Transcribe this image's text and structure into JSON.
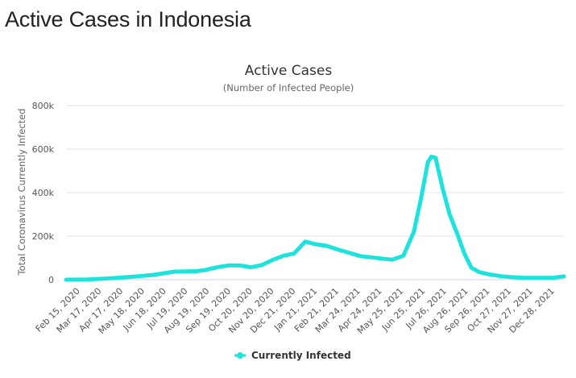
{
  "page": {
    "heading": "Active Cases in Indonesia"
  },
  "colors": {
    "series": "#1ee3dd",
    "grid": "#e6e6e6",
    "text": "#333333"
  },
  "chart_data": {
    "type": "line",
    "title": "Active Cases",
    "subtitle": "(Number of Infected People)",
    "ylabel": "Total Coronavirus Currently Infected",
    "xlabel": "",
    "ylim": [
      0,
      800000
    ],
    "y_ticks": [
      0,
      200000,
      400000,
      600000,
      800000
    ],
    "y_tick_labels": [
      "0",
      "200k",
      "400k",
      "600k",
      "800k"
    ],
    "x_tick_labels": [
      "Feb 15, 2020",
      "Mar 17, 2020",
      "Apr 17, 2020",
      "May 18, 2020",
      "Jun 18, 2020",
      "Jul 19, 2020",
      "Aug 19, 2020",
      "Sep 19, 2020",
      "Oct 20, 2020",
      "Nov 20, 2020",
      "Dec 21, 2020",
      "Jan 21, 2021",
      "Feb 21, 2021",
      "Mar 24, 2021",
      "Apr 24, 2021",
      "May 25, 2021",
      "Jun 25, 2021",
      "Jul 26, 2021",
      "Aug 26, 2021",
      "Sep 26, 2021",
      "Oct 27, 2021",
      "Nov 27, 2021",
      "Dec 28, 2021"
    ],
    "grid": true,
    "legend_position": "bottom-center",
    "series": [
      {
        "name": "Currently Infected",
        "x": [
          "2020-02-15",
          "2020-03-17",
          "2020-04-17",
          "2020-05-18",
          "2020-06-18",
          "2020-07-19",
          "2020-08-19",
          "2020-09-01",
          "2020-09-19",
          "2020-10-05",
          "2020-10-20",
          "2020-11-05",
          "2020-11-20",
          "2020-12-05",
          "2020-12-21",
          "2021-01-05",
          "2021-01-21",
          "2021-02-05",
          "2021-02-21",
          "2021-03-10",
          "2021-03-24",
          "2021-04-10",
          "2021-04-24",
          "2021-05-10",
          "2021-05-25",
          "2021-06-10",
          "2021-06-25",
          "2021-07-05",
          "2021-07-15",
          "2021-07-20",
          "2021-07-26",
          "2021-08-05",
          "2021-08-15",
          "2021-08-26",
          "2021-09-05",
          "2021-09-15",
          "2021-09-26",
          "2021-10-10",
          "2021-10-27",
          "2021-11-10",
          "2021-11-27",
          "2021-12-10",
          "2021-12-28",
          "2022-01-10",
          "2022-01-25"
        ],
        "y": [
          0,
          1000,
          6000,
          13000,
          22000,
          37000,
          39000,
          45000,
          58000,
          66000,
          65000,
          57000,
          67000,
          90000,
          110000,
          120000,
          175000,
          163000,
          155000,
          137000,
          124000,
          108000,
          103000,
          97000,
          92000,
          110000,
          220000,
          370000,
          540000,
          565000,
          560000,
          420000,
          300000,
          210000,
          120000,
          55000,
          35000,
          25000,
          16000,
          12000,
          9000,
          8000,
          8000,
          9000,
          15000
        ]
      }
    ]
  }
}
